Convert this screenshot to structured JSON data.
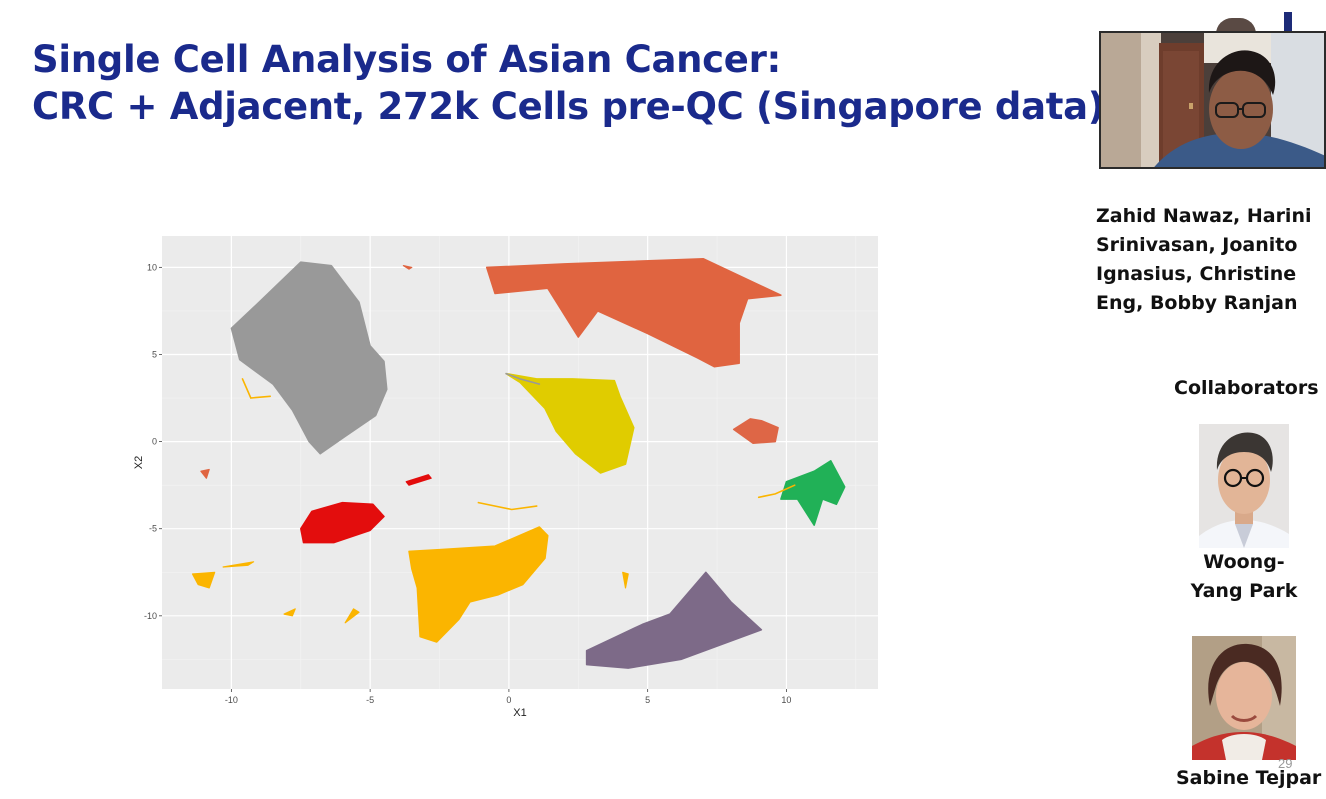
{
  "slide": {
    "title_line1": "Single Cell Analysis of Asian Cancer:",
    "title_line2": "CRC + Adjacent, 272k Cells pre-QC (Singapore data)",
    "authors": "Zahid Nawaz, Harini Srinivasan, Joanito Ignasius, Christine Eng, Bobby Ranjan",
    "collaborators_heading": "Collaborators",
    "collaborator1_name": "Woong-Yang Park",
    "collaborator2_name": "Sabine Tejpar",
    "page_number": "29"
  },
  "chart_data": {
    "type": "scatter",
    "xlabel": "X1",
    "ylabel": "X2",
    "xlim": [
      -12.5,
      13.3
    ],
    "ylim": [
      -14.2,
      11.8
    ],
    "xticks": [
      -10,
      -5,
      0,
      5,
      10
    ],
    "yticks": [
      -10,
      -5,
      0,
      5,
      10
    ],
    "grid": true,
    "background": "#ebebeb",
    "clusters": [
      {
        "color": "#999999",
        "polygon": [
          [
            -10,
            6.5
          ],
          [
            -9,
            8
          ],
          [
            -7.5,
            10.3
          ],
          [
            -6.4,
            10.1
          ],
          [
            -5.4,
            8
          ],
          [
            -5,
            5.5
          ],
          [
            -4.5,
            4.6
          ],
          [
            -4.4,
            3
          ],
          [
            -4.8,
            1.5
          ],
          [
            -5.9,
            0.3
          ],
          [
            -6.8,
            -0.7
          ],
          [
            -7.2,
            0
          ],
          [
            -7.8,
            1.8
          ],
          [
            -8.5,
            3.3
          ],
          [
            -9.7,
            4.7
          ]
        ]
      },
      {
        "color": "#e06440",
        "polygon": [
          [
            -0.8,
            10
          ],
          [
            2,
            10.2
          ],
          [
            7,
            10.5
          ],
          [
            9.8,
            8.4
          ],
          [
            8.6,
            8.2
          ],
          [
            8.3,
            6.8
          ],
          [
            8.3,
            4.5
          ],
          [
            7.4,
            4.3
          ],
          [
            6.8,
            4.8
          ],
          [
            5,
            6.2
          ],
          [
            3.2,
            7.5
          ],
          [
            2.5,
            6
          ],
          [
            1.4,
            8.8
          ],
          [
            -0.5,
            8.5
          ]
        ]
      },
      {
        "color": "#de6646",
        "polygon": [
          [
            8.7,
            1.3
          ],
          [
            9.1,
            1.2
          ],
          [
            9.7,
            0.8
          ],
          [
            9.6,
            0
          ],
          [
            8.8,
            -0.1
          ],
          [
            8.1,
            0.7
          ]
        ]
      },
      {
        "color": "#e0cc00",
        "polygon": [
          [
            -0.1,
            3.9
          ],
          [
            1,
            3.6
          ],
          [
            2.3,
            3.6
          ],
          [
            3.8,
            3.5
          ],
          [
            4,
            2.6
          ],
          [
            4.5,
            0.8
          ],
          [
            4.2,
            -1.3
          ],
          [
            3.3,
            -1.8
          ],
          [
            2.4,
            -0.7
          ],
          [
            1.7,
            0.6
          ],
          [
            1.3,
            1.9
          ],
          [
            0.4,
            3.4
          ]
        ]
      },
      {
        "color": "#21b157",
        "polygon": [
          [
            9.8,
            -3.3
          ],
          [
            10,
            -2.3
          ],
          [
            11,
            -1.7
          ],
          [
            11.6,
            -1.1
          ],
          [
            12.1,
            -2.6
          ],
          [
            11.8,
            -3.6
          ],
          [
            11.3,
            -3.3
          ],
          [
            11,
            -4.8
          ],
          [
            10.4,
            -3.3
          ]
        ]
      },
      {
        "color": "#e30d0d",
        "polygon": [
          [
            -7.5,
            -5
          ],
          [
            -7.1,
            -4
          ],
          [
            -6,
            -3.5
          ],
          [
            -4.9,
            -3.6
          ],
          [
            -4.5,
            -4.3
          ],
          [
            -5,
            -5.1
          ],
          [
            -6.3,
            -5.8
          ],
          [
            -7.4,
            -5.8
          ]
        ]
      },
      {
        "color": "#fbb500",
        "polygon": [
          [
            -3.6,
            -6.3
          ],
          [
            -2.5,
            -6.2
          ],
          [
            -0.5,
            -6
          ],
          [
            1.1,
            -4.9
          ],
          [
            1.4,
            -5.4
          ],
          [
            1.3,
            -6.7
          ],
          [
            0.5,
            -8.2
          ],
          [
            -0.4,
            -8.8
          ],
          [
            -1.4,
            -9.2
          ],
          [
            -1.8,
            -10.2
          ],
          [
            -2.6,
            -11.5
          ],
          [
            -3.2,
            -11.2
          ],
          [
            -3.3,
            -8.4
          ],
          [
            -3.5,
            -7.3
          ]
        ]
      },
      {
        "color": "#7d6a88",
        "polygon": [
          [
            2.8,
            -12
          ],
          [
            4.8,
            -10.5
          ],
          [
            5.8,
            -9.9
          ],
          [
            7.1,
            -7.5
          ],
          [
            8,
            -9.2
          ],
          [
            9.1,
            -10.8
          ],
          [
            6.2,
            -12.5
          ],
          [
            4.3,
            -13
          ],
          [
            2.8,
            -12.8
          ]
        ]
      }
    ],
    "fragments": [
      {
        "color": "#e30d0d",
        "polygon": [
          [
            -3.7,
            -2.3
          ],
          [
            -2.9,
            -1.9
          ],
          [
            -2.8,
            -2.1
          ],
          [
            -3.6,
            -2.5
          ]
        ]
      },
      {
        "color": "#fbb500",
        "polygon": [
          [
            -11.4,
            -7.6
          ],
          [
            -10.6,
            -7.5
          ],
          [
            -10.8,
            -8.4
          ],
          [
            -11.2,
            -8.2
          ]
        ]
      },
      {
        "color": "#fbb500",
        "polygon": [
          [
            -8.1,
            -9.9
          ],
          [
            -7.7,
            -9.6
          ],
          [
            -7.8,
            -10
          ]
        ]
      },
      {
        "color": "#fbb500",
        "polygon": [
          [
            -5.9,
            -10.4
          ],
          [
            -5.6,
            -9.6
          ],
          [
            -5.4,
            -9.8
          ]
        ]
      },
      {
        "color": "#fbb500",
        "polygon": [
          [
            -10.3,
            -7.2
          ],
          [
            -9.2,
            -6.9
          ],
          [
            -9.4,
            -7.1
          ]
        ]
      },
      {
        "color": "#fbb500",
        "polygon": [
          [
            4.1,
            -7.5
          ],
          [
            4.3,
            -7.6
          ],
          [
            4.2,
            -8.4
          ]
        ]
      },
      {
        "color": "#e06440",
        "polygon": [
          [
            -11.1,
            -1.7
          ],
          [
            -10.8,
            -1.6
          ],
          [
            -10.9,
            -2.1
          ]
        ]
      },
      {
        "color": "#e06440",
        "polygon": [
          [
            -3.8,
            10.1
          ],
          [
            -3.5,
            10
          ],
          [
            -3.6,
            9.9
          ]
        ]
      }
    ],
    "trails": [
      {
        "color": "#999999",
        "points": [
          [
            -0.1,
            3.9
          ],
          [
            0.4,
            3.6
          ],
          [
            1.1,
            3.3
          ]
        ]
      },
      {
        "color": "#fbb500",
        "points": [
          [
            10.3,
            -2.5
          ],
          [
            9.6,
            -3
          ],
          [
            9,
            -3.2
          ]
        ]
      },
      {
        "color": "#fbb500",
        "points": [
          [
            -1.1,
            -3.5
          ],
          [
            0.1,
            -3.9
          ],
          [
            1,
            -3.7
          ]
        ]
      },
      {
        "color": "#fbb500",
        "points": [
          [
            -9.6,
            3.6
          ],
          [
            -9.3,
            2.5
          ],
          [
            -8.6,
            2.6
          ]
        ]
      }
    ]
  }
}
